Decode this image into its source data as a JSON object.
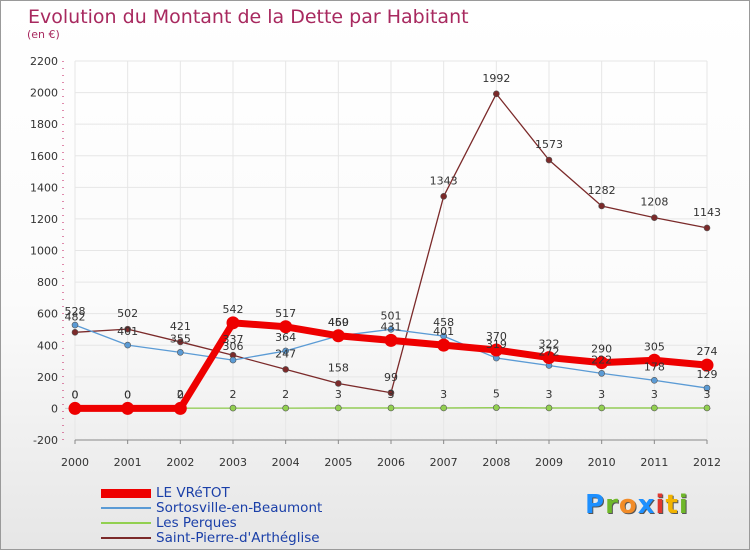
{
  "chart_data": {
    "type": "line",
    "title": "Evolution du Montant de la Dette par Habitant",
    "subtitle": "(en €)",
    "x": [
      "2000",
      "2001",
      "2002",
      "2003",
      "2004",
      "2005",
      "2006",
      "2007",
      "2008",
      "2009",
      "2010",
      "2011",
      "2012"
    ],
    "ylim": [
      -200,
      2200
    ],
    "yticks": [
      -200,
      0,
      200,
      400,
      600,
      800,
      1000,
      1200,
      1400,
      1600,
      1800,
      2000,
      2200
    ],
    "grid": true,
    "legend_position": "bottom-left",
    "series": [
      {
        "name": "LE VRéTOT",
        "color": "#ee0000",
        "values": [
          0,
          0,
          0,
          542,
          517,
          460,
          431,
          401,
          370,
          322,
          290,
          305,
          274
        ]
      },
      {
        "name": "Sortosville-en-Beaumont",
        "color": "#5b9bd5",
        "values": [
          528,
          401,
          355,
          306,
          364,
          459,
          501,
          458,
          319,
          272,
          222,
          178,
          129
        ]
      },
      {
        "name": "Les Perques",
        "color": "#92d050",
        "values": [
          0,
          0,
          2,
          2,
          2,
          3,
          3,
          3,
          5,
          3,
          3,
          3,
          3
        ]
      },
      {
        "name": "Saint-Pierre-d'Arthéglise",
        "color": "#7b2a2a",
        "values": [
          482,
          502,
          421,
          337,
          247,
          158,
          99,
          1343,
          1992,
          1573,
          1282,
          1208,
          1143
        ]
      }
    ]
  },
  "logo": {
    "letters": [
      "P",
      "r",
      "o",
      "x",
      "i",
      "t",
      "i"
    ],
    "colors": [
      "#1e90ff",
      "#6fb82a",
      "#f28c28",
      "#1e90ff",
      "#e0382f",
      "#f2b400",
      "#6fb82a"
    ]
  }
}
